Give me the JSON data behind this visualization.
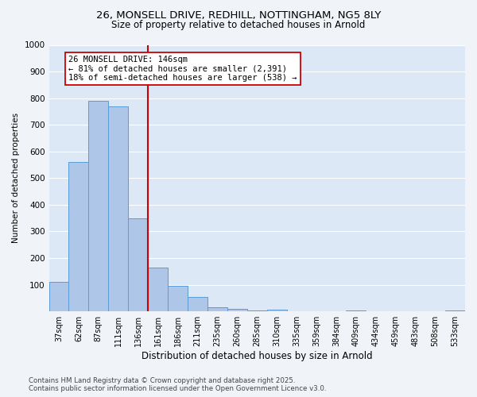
{
  "title_line1": "26, MONSELL DRIVE, REDHILL, NOTTINGHAM, NG5 8LY",
  "title_line2": "Size of property relative to detached houses in Arnold",
  "xlabel": "Distribution of detached houses by size in Arnold",
  "ylabel": "Number of detached properties",
  "categories": [
    "37sqm",
    "62sqm",
    "87sqm",
    "111sqm",
    "136sqm",
    "161sqm",
    "186sqm",
    "211sqm",
    "235sqm",
    "260sqm",
    "285sqm",
    "310sqm",
    "335sqm",
    "359sqm",
    "384sqm",
    "409sqm",
    "434sqm",
    "459sqm",
    "483sqm",
    "508sqm",
    "533sqm"
  ],
  "values": [
    110,
    560,
    790,
    770,
    350,
    165,
    97,
    55,
    15,
    10,
    5,
    7,
    0,
    0,
    0,
    3,
    0,
    0,
    0,
    0,
    4
  ],
  "bar_color": "#aec6e8",
  "bar_edge_color": "#5b9bd5",
  "ref_line_color": "#cc0000",
  "annotation_line1": "26 MONSELL DRIVE: 146sqm",
  "annotation_line2": "← 81% of detached houses are smaller (2,391)",
  "annotation_line3": "18% of semi-detached houses are larger (538) →",
  "annotation_box_color": "#ffffff",
  "annotation_box_edge_color": "#cc0000",
  "ylim": [
    0,
    1000
  ],
  "yticks": [
    0,
    100,
    200,
    300,
    400,
    500,
    600,
    700,
    800,
    900,
    1000
  ],
  "bg_color": "#dce8f5",
  "grid_color": "#ffffff",
  "footer_line1": "Contains HM Land Registry data © Crown copyright and database right 2025.",
  "footer_line2": "Contains public sector information licensed under the Open Government Licence v3.0."
}
